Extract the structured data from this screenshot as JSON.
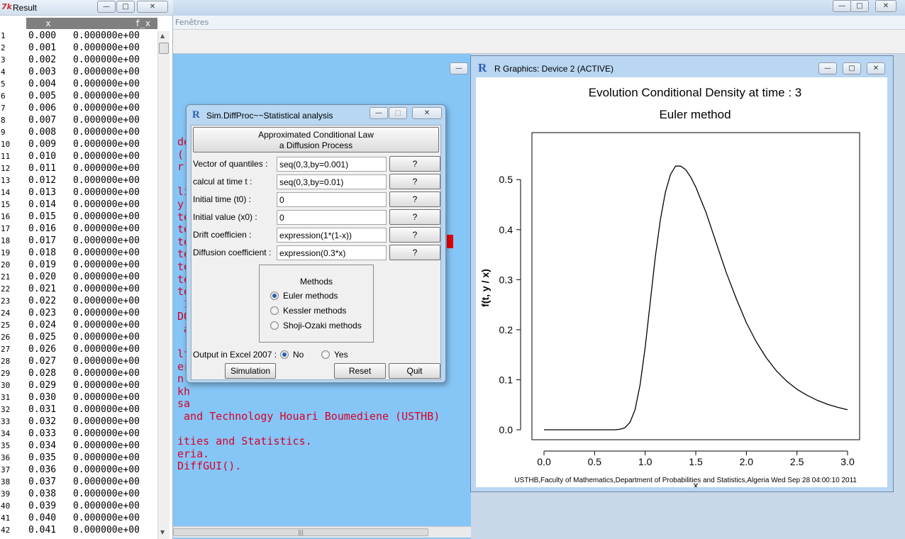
{
  "result_window": {
    "title": "Result",
    "columns": [
      "x",
      "f_x"
    ],
    "rows": [
      [
        "1",
        "0.000",
        "0.000000e+00"
      ],
      [
        "2",
        "0.001",
        "0.000000e+00"
      ],
      [
        "3",
        "0.002",
        "0.000000e+00"
      ],
      [
        "4",
        "0.003",
        "0.000000e+00"
      ],
      [
        "5",
        "0.004",
        "0.000000e+00"
      ],
      [
        "6",
        "0.005",
        "0.000000e+00"
      ],
      [
        "7",
        "0.006",
        "0.000000e+00"
      ],
      [
        "8",
        "0.007",
        "0.000000e+00"
      ],
      [
        "9",
        "0.008",
        "0.000000e+00"
      ],
      [
        "10",
        "0.009",
        "0.000000e+00"
      ],
      [
        "11",
        "0.010",
        "0.000000e+00"
      ],
      [
        "12",
        "0.011",
        "0.000000e+00"
      ],
      [
        "13",
        "0.012",
        "0.000000e+00"
      ],
      [
        "14",
        "0.013",
        "0.000000e+00"
      ],
      [
        "15",
        "0.014",
        "0.000000e+00"
      ],
      [
        "16",
        "0.015",
        "0.000000e+00"
      ],
      [
        "17",
        "0.016",
        "0.000000e+00"
      ],
      [
        "18",
        "0.017",
        "0.000000e+00"
      ],
      [
        "19",
        "0.018",
        "0.000000e+00"
      ],
      [
        "20",
        "0.019",
        "0.000000e+00"
      ],
      [
        "21",
        "0.020",
        "0.000000e+00"
      ],
      [
        "22",
        "0.021",
        "0.000000e+00"
      ],
      [
        "23",
        "0.022",
        "0.000000e+00"
      ],
      [
        "24",
        "0.023",
        "0.000000e+00"
      ],
      [
        "25",
        "0.024",
        "0.000000e+00"
      ],
      [
        "26",
        "0.025",
        "0.000000e+00"
      ],
      [
        "27",
        "0.026",
        "0.000000e+00"
      ],
      [
        "28",
        "0.027",
        "0.000000e+00"
      ],
      [
        "29",
        "0.028",
        "0.000000e+00"
      ],
      [
        "30",
        "0.029",
        "0.000000e+00"
      ],
      [
        "31",
        "0.030",
        "0.000000e+00"
      ],
      [
        "32",
        "0.031",
        "0.000000e+00"
      ],
      [
        "33",
        "0.032",
        "0.000000e+00"
      ],
      [
        "34",
        "0.033",
        "0.000000e+00"
      ],
      [
        "35",
        "0.034",
        "0.000000e+00"
      ],
      [
        "36",
        "0.035",
        "0.000000e+00"
      ],
      [
        "37",
        "0.036",
        "0.000000e+00"
      ],
      [
        "38",
        "0.037",
        "0.000000e+00"
      ],
      [
        "39",
        "0.038",
        "0.000000e+00"
      ],
      [
        "40",
        "0.039",
        "0.000000e+00"
      ],
      [
        "41",
        "0.040",
        "0.000000e+00"
      ],
      [
        "42",
        "0.041",
        "0.000000e+00"
      ]
    ]
  },
  "rgui": {
    "menu_partial": "Fenêtres"
  },
  "console": {
    "lines": [
      "démonstrations, 'help()' pour l'aide",
      "()' pour obtenir l'aide au format HTML.",
      "r R.",
      "",
      "li                                  E))",
      "y(",
      "té",
      "té",
      "té",
      "té",
      "té",
      "té",
      "té",
      " 1",
      "DO",
      " a                                  B)",
      "",
      "lt",
      "er",
      "n",
      "kh",
      "sa",
      " and Technology Houari Boumediene (USTHB)",
      "",
      "ities and Statistics.",
      "eria.",
      "DiffGUI()."
    ]
  },
  "dialog": {
    "title": "Sim.DiffProc~~Statistical analysis",
    "law_button_line1": "Approximated Conditional Law",
    "law_button_line2": "a Diffusion Process",
    "fields": [
      {
        "label": "Vector of quantiles :",
        "value": "seq(0,3,by=0.001)",
        "help": "?"
      },
      {
        "label": "calcul at time t :",
        "value": "seq(0,3,by=0.01)",
        "help": "?"
      },
      {
        "label": "Initial time (t0) :",
        "value": "0",
        "help": "?"
      },
      {
        "label": "Initial value (x0) :",
        "value": "0",
        "help": "?"
      },
      {
        "label": "Drift coefficien :",
        "value": "expression(1*(1-x))",
        "help": "?"
      },
      {
        "label": "Diffusion coefficient :",
        "value": "expression(0.3*x)",
        "help": "?"
      }
    ],
    "methods_title": "Methods",
    "methods": [
      {
        "label": "Euler methods",
        "selected": true
      },
      {
        "label": "Kessler methods",
        "selected": false
      },
      {
        "label": "Shoji-Ozaki methods",
        "selected": false
      }
    ],
    "excel_label": "Output in Excel 2007 :",
    "excel_no": "No",
    "excel_yes": "Yes",
    "excel_selected": "No",
    "simulation_button": "Simulation",
    "reset_button": "Reset",
    "quit_button": "Quit"
  },
  "graphics": {
    "title": "R Graphics: Device 2 (ACTIVE)",
    "footer": "USTHB,Faculty of Mathematics,Department of Probabilities and Statistics,Algeria Wed Sep 28 04:00:10 2011"
  },
  "chart_data": {
    "type": "line",
    "title": "Evolution Conditional Density at time : 3",
    "subtitle": "Euler method",
    "xlabel": "x",
    "ylabel": "f(t, y / x)",
    "xlim": [
      0,
      3
    ],
    "ylim": [
      0,
      0.5
    ],
    "x_ticks": [
      "0.0",
      "0.5",
      "1.0",
      "1.5",
      "2.0",
      "2.5",
      "3.0"
    ],
    "y_ticks": [
      "0.0",
      "0.1",
      "0.2",
      "0.3",
      "0.4",
      "0.5"
    ],
    "grid": false,
    "series": [
      {
        "x": [
          0.0,
          0.5,
          0.7,
          0.75,
          0.8,
          0.85,
          0.9,
          0.95,
          1.0,
          1.05,
          1.1,
          1.15,
          1.2,
          1.25,
          1.3,
          1.35,
          1.4,
          1.45,
          1.5,
          1.55,
          1.6,
          1.7,
          1.8,
          1.9,
          2.0,
          2.1,
          2.2,
          2.3,
          2.4,
          2.5,
          2.6,
          2.7,
          2.8,
          2.9,
          3.0
        ],
        "y": [
          0.0,
          0.0,
          0.0,
          0.001,
          0.004,
          0.015,
          0.04,
          0.09,
          0.165,
          0.255,
          0.345,
          0.42,
          0.475,
          0.51,
          0.527,
          0.527,
          0.52,
          0.505,
          0.485,
          0.46,
          0.435,
          0.375,
          0.315,
          0.262,
          0.214,
          0.175,
          0.143,
          0.117,
          0.097,
          0.081,
          0.069,
          0.059,
          0.051,
          0.045,
          0.04
        ]
      }
    ]
  },
  "colors": {
    "console_bg": "#86c6f6",
    "console_text": "#d8002a",
    "dialog_frame": "#b8d7f2",
    "header_grey": "#7f7f7f"
  }
}
